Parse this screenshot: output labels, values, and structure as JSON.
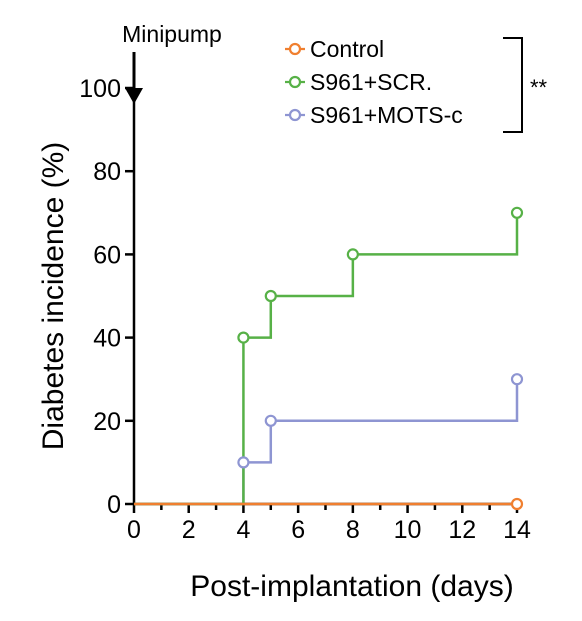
{
  "chart_data": {
    "type": "line",
    "step": true,
    "xlabel": "Post-implantation (days)",
    "ylabel": "Diabetes incidence (%)",
    "xlim": [
      0,
      14
    ],
    "ylim": [
      0,
      100
    ],
    "xticks": [
      0,
      2,
      4,
      6,
      8,
      10,
      12,
      14
    ],
    "yticks": [
      0,
      20,
      40,
      60,
      80,
      100
    ],
    "x_tick_labels": [
      "0",
      "2",
      "4",
      "6",
      "8",
      "10",
      "12",
      "14"
    ],
    "y_tick_labels": [
      "0",
      "20",
      "40",
      "60",
      "80",
      "100"
    ],
    "grid": false,
    "legend_position": "top-right",
    "series": [
      {
        "name": "Control",
        "color": "#f07f2f",
        "points": [
          [
            0,
            0
          ],
          [
            14,
            0
          ]
        ],
        "markers": [
          [
            14,
            0
          ]
        ]
      },
      {
        "name": "S961+SCR.",
        "color": "#57b147",
        "points": [
          [
            0,
            0
          ],
          [
            4,
            0
          ],
          [
            4,
            40
          ],
          [
            5,
            40
          ],
          [
            5,
            50
          ],
          [
            8,
            50
          ],
          [
            8,
            60
          ],
          [
            14,
            60
          ],
          [
            14,
            70
          ]
        ],
        "markers": [
          [
            4,
            40
          ],
          [
            5,
            50
          ],
          [
            8,
            60
          ],
          [
            14,
            70
          ]
        ]
      },
      {
        "name": "S961+MOTS-c",
        "color": "#8e95d2",
        "points": [
          [
            0,
            0
          ],
          [
            4,
            0
          ],
          [
            4,
            10
          ],
          [
            5,
            10
          ],
          [
            5,
            20
          ],
          [
            14,
            20
          ],
          [
            14,
            30
          ]
        ],
        "markers": [
          [
            4,
            10
          ],
          [
            5,
            20
          ],
          [
            14,
            30
          ]
        ]
      }
    ],
    "annotations": {
      "event_label": "Minipump",
      "event_x": 0,
      "significance": "**"
    }
  }
}
